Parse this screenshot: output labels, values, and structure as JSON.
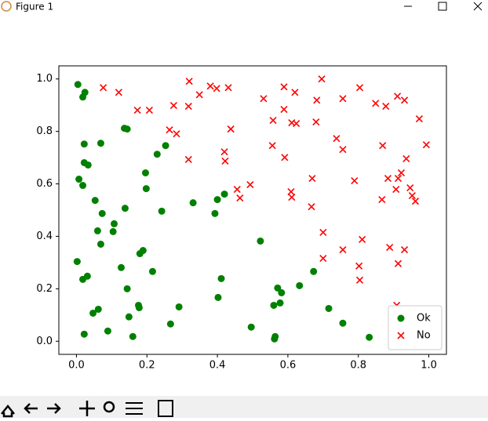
{
  "window": {
    "title": "Figure 1"
  },
  "chart_data": {
    "type": "scatter",
    "xlim": [
      -0.05,
      1.05
    ],
    "ylim": [
      -0.05,
      1.05
    ],
    "xticks": [
      {
        "value": 0,
        "label": "0.0"
      },
      0.2,
      0.4,
      0.6,
      0.8,
      {
        "value": 1,
        "label": "1.0"
      }
    ],
    "yticks": [
      {
        "value": 0,
        "label": "0.0"
      },
      0.2,
      0.4,
      0.6,
      0.8,
      {
        "value": 1,
        "label": "1.0"
      }
    ],
    "grid": false,
    "legend": "lower right",
    "series": [
      {
        "name": "Ok",
        "color": "#008000",
        "marker": "o",
        "x": [
          0.004,
          0.024,
          0.018,
          0.136,
          0.144,
          0.022,
          0.069,
          0.022,
          0.033,
          0.253,
          0.229,
          0.196,
          0.007,
          0.018,
          0.198,
          0.42,
          0.4,
          0.331,
          0.053,
          0.073,
          0.138,
          0.242,
          0.393,
          0.107,
          0.104,
          0.06,
          0.069,
          0.522,
          0.189,
          0.18,
          0.002,
          0.127,
          0.216,
          0.673,
          0.031,
          0.018,
          0.411,
          0.144,
          0.571,
          0.582,
          0.633,
          0.402,
          0.578,
          0.56,
          0.176,
          0.178,
          0.291,
          0.716,
          0.062,
          0.047,
          0.149,
          0.267,
          0.756,
          0.496,
          0.089,
          0.022,
          0.16,
          0.564,
          0.562,
          0.831
        ],
        "y": [
          0.979,
          0.949,
          0.931,
          0.812,
          0.809,
          0.752,
          0.755,
          0.681,
          0.672,
          0.746,
          0.713,
          0.642,
          0.618,
          0.594,
          0.582,
          0.561,
          0.54,
          0.528,
          0.537,
          0.487,
          0.507,
          0.496,
          0.487,
          0.448,
          0.418,
          0.421,
          0.37,
          0.382,
          0.346,
          0.334,
          0.304,
          0.281,
          0.266,
          0.266,
          0.248,
          0.236,
          0.239,
          0.2,
          0.203,
          0.185,
          0.212,
          0.167,
          0.146,
          0.137,
          0.137,
          0.128,
          0.131,
          0.125,
          0.122,
          0.107,
          0.093,
          0.066,
          0.069,
          0.054,
          0.039,
          0.027,
          0.018,
          0.018,
          0.009,
          0.015
        ]
      },
      {
        "name": "No",
        "color": "#ff0000",
        "marker": "x",
        "x": [
          0.076,
          0.12,
          0.32,
          0.38,
          0.398,
          0.431,
          0.349,
          0.276,
          0.318,
          0.207,
          0.173,
          0.531,
          0.589,
          0.62,
          0.589,
          0.558,
          0.611,
          0.624,
          0.696,
          0.682,
          0.756,
          0.804,
          0.849,
          0.878,
          0.911,
          0.931,
          0.973,
          0.68,
          0.264,
          0.284,
          0.438,
          0.556,
          0.738,
          0.756,
          0.869,
          0.993,
          0.318,
          0.42,
          0.422,
          0.591,
          0.936,
          0.669,
          0.789,
          0.922,
          0.913,
          0.884,
          0.493,
          0.456,
          0.464,
          0.609,
          0.611,
          0.907,
          0.947,
          0.953,
          0.962,
          0.867,
          0.667,
          0.7,
          0.811,
          0.756,
          0.889,
          0.931,
          0.7,
          0.802,
          0.913,
          0.804,
          0.909
        ],
        "y": [
          0.967,
          0.949,
          0.991,
          0.973,
          0.964,
          0.967,
          0.94,
          0.899,
          0.896,
          0.881,
          0.881,
          0.925,
          0.97,
          0.949,
          0.884,
          0.842,
          0.833,
          0.83,
          1.0,
          0.919,
          0.925,
          0.967,
          0.907,
          0.896,
          0.934,
          0.919,
          0.848,
          0.836,
          0.806,
          0.791,
          0.809,
          0.746,
          0.773,
          0.731,
          0.746,
          0.749,
          0.693,
          0.722,
          0.687,
          0.701,
          0.696,
          0.621,
          0.612,
          0.642,
          0.621,
          0.621,
          0.597,
          0.579,
          0.546,
          0.57,
          0.549,
          0.579,
          0.585,
          0.555,
          0.534,
          0.54,
          0.513,
          0.415,
          0.388,
          0.349,
          0.358,
          0.349,
          0.316,
          0.287,
          0.296,
          0.233,
          0.137
        ]
      }
    ]
  }
}
